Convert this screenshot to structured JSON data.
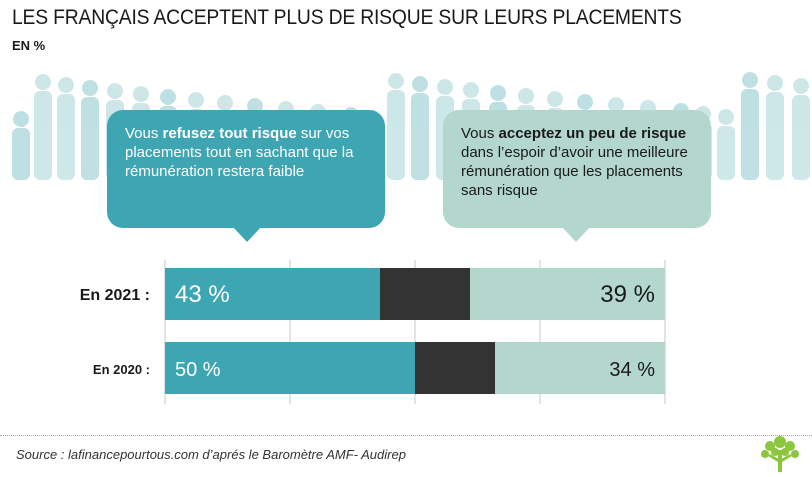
{
  "title": "LES FRANÇAIS ACCEPTENT PLUS DE RISQUE SUR LEURS PLACEMENTS",
  "unit": "EN %",
  "bubble_refuse": {
    "pre": "Vous ",
    "bold": "refusez tout risque",
    "post": " sur vos placements tout en sachant que la rémunération restera faible"
  },
  "bubble_accept": {
    "pre": "Vous ",
    "bold": "acceptez un peu de risque",
    "post": " dans l’espoir d’avoir une meilleure rémunération que les placements sans risque"
  },
  "source": "Source : lafinancepourtous.com d’aprés le Baromètre AMF- Audirep",
  "colors": {
    "refuse": "#3da6b2",
    "other": "#333333",
    "accept": "#b3d7cd",
    "crowd": "#b9dde0",
    "tree": "#8cc63f"
  },
  "chart_data": {
    "type": "bar",
    "orientation": "horizontal",
    "stacked": true,
    "categories": [
      "En 2021 :",
      "En 2020 :"
    ],
    "series": [
      {
        "values": [
          43,
          50
        ],
        "labels": [
          "43 %",
          "50 %"
        ]
      },
      {
        "values": [
          18,
          16
        ],
        "labels": [
          "",
          ""
        ]
      },
      {
        "values": [
          39,
          34
        ],
        "labels": [
          "39 %",
          "34 %"
        ]
      }
    ],
    "xlim": [
      0,
      100
    ],
    "grid": true
  }
}
